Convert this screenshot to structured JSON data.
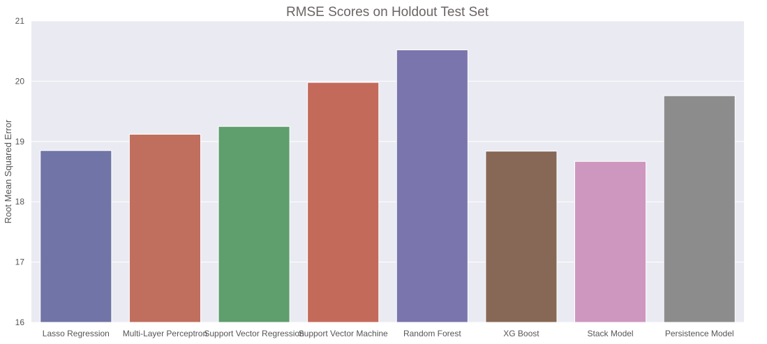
{
  "chart_data": {
    "type": "bar",
    "title": "RMSE Scores on Holdout Test Set",
    "xlabel": "",
    "ylabel": "Root Mean Squared Error",
    "categories": [
      "Lasso Regression",
      "Multi-Layer Perceptron",
      "Support Vector Regression",
      "Support Vector Machine",
      "Random Forest",
      "XG Boost",
      "Stack Model",
      "Persistence Model"
    ],
    "values": [
      18.85,
      19.12,
      19.25,
      19.98,
      20.52,
      18.84,
      18.67,
      19.76
    ],
    "colors": [
      "#7074a6",
      "#c06e5e",
      "#5f9e6d",
      "#c46a5b",
      "#7b75ad",
      "#876856",
      "#cd97bf",
      "#8c8c8c"
    ],
    "ylim": [
      16,
      21
    ],
    "yticks": [
      "16",
      "17",
      "18",
      "19",
      "20",
      "21"
    ],
    "grid": true,
    "plot_background": "#eaeaf2",
    "grid_color": "#ffffff"
  }
}
